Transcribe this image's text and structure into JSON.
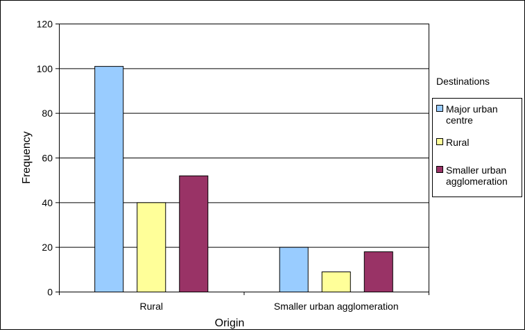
{
  "chart_data": {
    "type": "bar",
    "title": "",
    "xlabel": "Origin",
    "ylabel": "Frequency",
    "categories": [
      "Rural",
      "Smaller urban agglomeration"
    ],
    "ylim": [
      0,
      120
    ],
    "yticks": [
      "0",
      "20",
      "40",
      "60",
      "80",
      "100",
      "120"
    ],
    "grid": true,
    "legend": {
      "title": "Destinations",
      "position": "right",
      "entries": [
        {
          "lines": [
            "Major urban",
            "centre"
          ],
          "color": "#99ccff"
        },
        {
          "lines": [
            "Rural"
          ],
          "color": "#ffff99"
        },
        {
          "lines": [
            "Smaller urban",
            "agglomeration"
          ],
          "color": "#993366"
        }
      ]
    },
    "series": [
      {
        "name": "Major urban centre",
        "color": "#99ccff",
        "values": [
          101,
          20
        ]
      },
      {
        "name": "Rural",
        "color": "#ffff99",
        "values": [
          40,
          9
        ]
      },
      {
        "name": "Smaller urban agglomeration",
        "color": "#993366",
        "values": [
          52,
          18
        ]
      }
    ]
  }
}
